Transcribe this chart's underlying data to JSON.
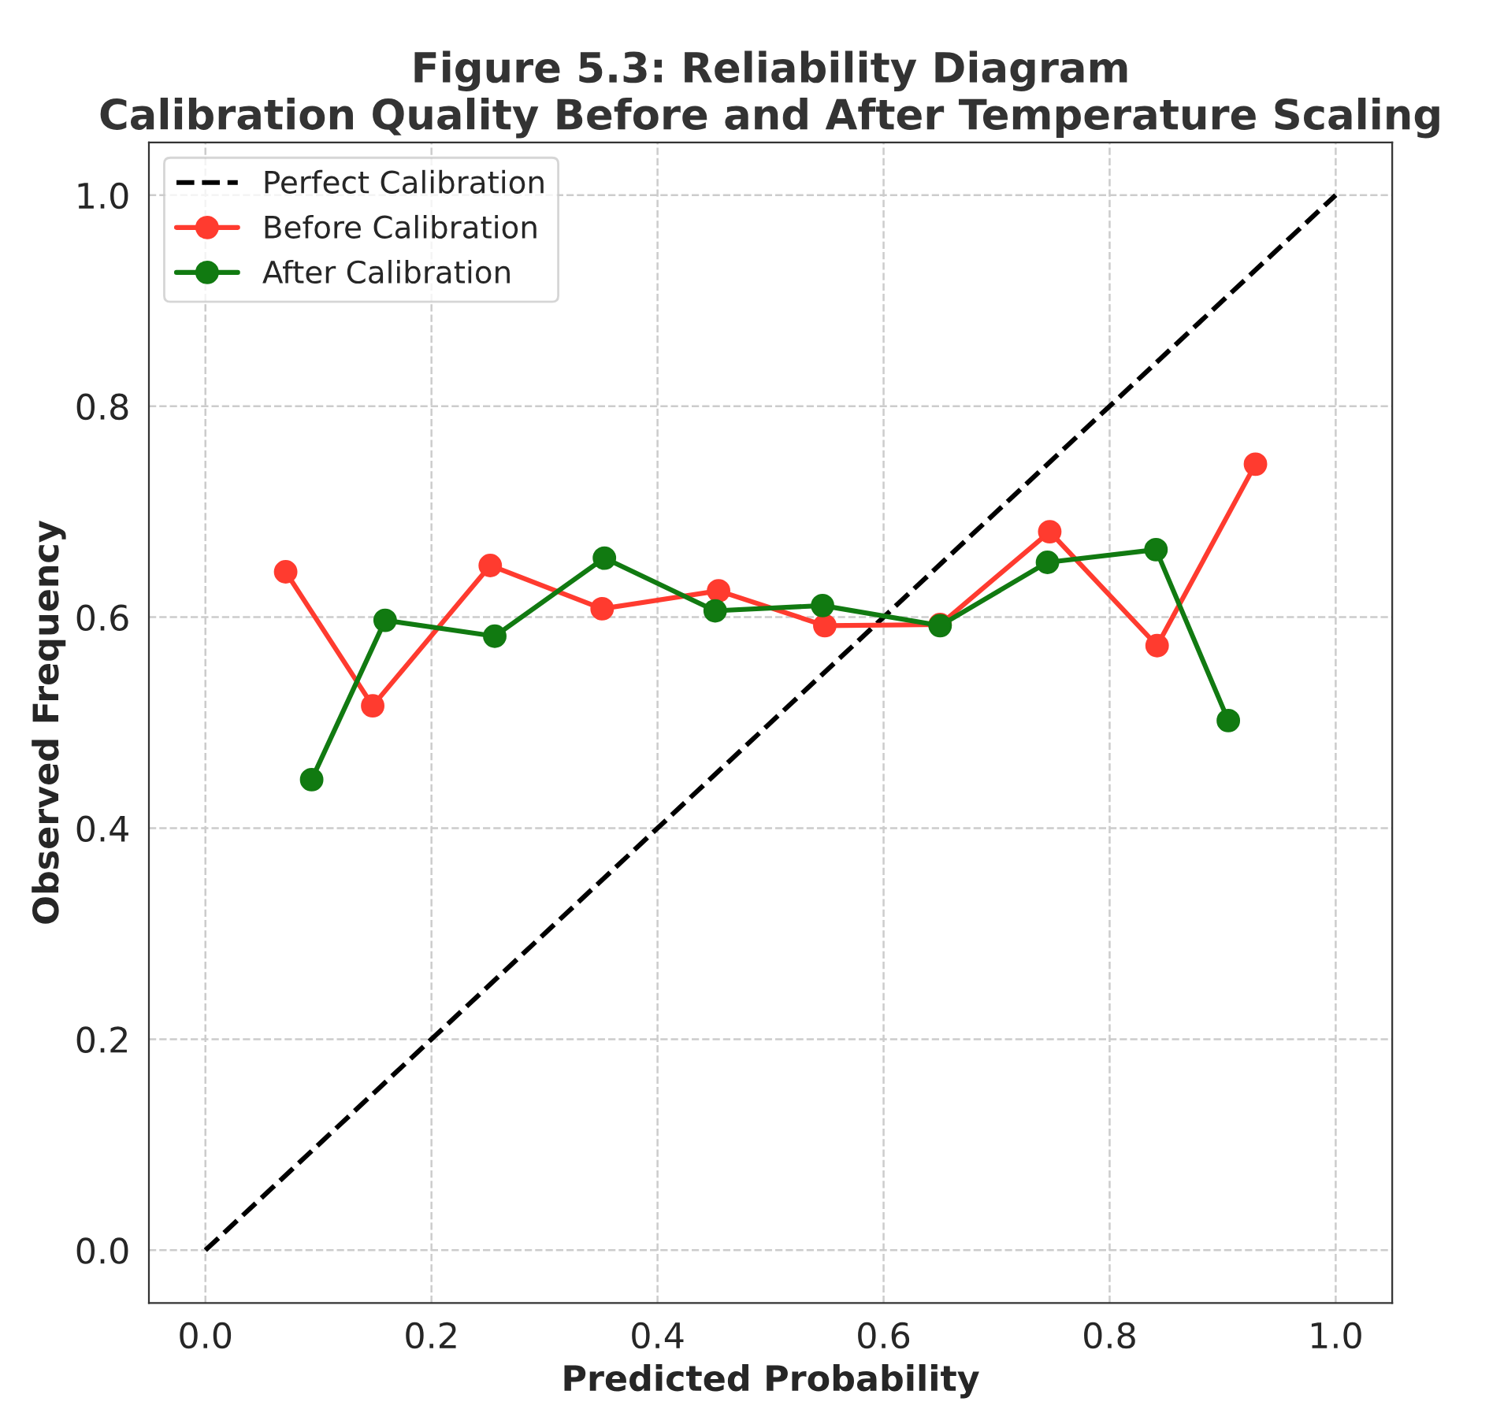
{
  "chart_data": {
    "type": "line",
    "title": "Figure 5.3: Reliability Diagram\nCalibration Quality Before and After Temperature Scaling",
    "xlabel": "Predicted Probability",
    "ylabel": "Observed Frequency",
    "series": [
      {
        "name": "Perfect Calibration",
        "color": "#000000",
        "line_style": "dashed",
        "marker": "none",
        "x": [
          0.0,
          1.0
        ],
        "values": [
          0.0,
          1.0
        ]
      },
      {
        "name": "Before Calibration",
        "color": "#ff3b2f",
        "line_style": "solid",
        "marker": "circle",
        "x": [
          0.071,
          0.148,
          0.252,
          0.351,
          0.454,
          0.548,
          0.65,
          0.747,
          0.842,
          0.929
        ],
        "values": [
          0.643,
          0.516,
          0.649,
          0.608,
          0.625,
          0.592,
          0.593,
          0.681,
          0.573,
          0.745
        ]
      },
      {
        "name": "After Calibration",
        "color": "#117a11",
        "line_style": "solid",
        "marker": "circle",
        "x": [
          0.094,
          0.159,
          0.256,
          0.353,
          0.451,
          0.546,
          0.65,
          0.745,
          0.841,
          0.905
        ],
        "values": [
          0.446,
          0.597,
          0.582,
          0.656,
          0.606,
          0.611,
          0.592,
          0.652,
          0.664,
          0.502
        ]
      }
    ],
    "xlim": [
      -0.05,
      1.05
    ],
    "ylim": [
      -0.05,
      1.05
    ],
    "xticks": [
      {
        "value": 0,
        "label": "0.0"
      },
      0.2,
      0.4,
      0.6,
      0.8,
      {
        "value": 1,
        "label": "1.0"
      }
    ],
    "yticks": [
      {
        "value": 0,
        "label": "0.0"
      },
      0.2,
      0.4,
      0.6,
      0.8,
      {
        "value": 1,
        "label": "1.0"
      }
    ],
    "grid": true,
    "legend": "top left"
  }
}
